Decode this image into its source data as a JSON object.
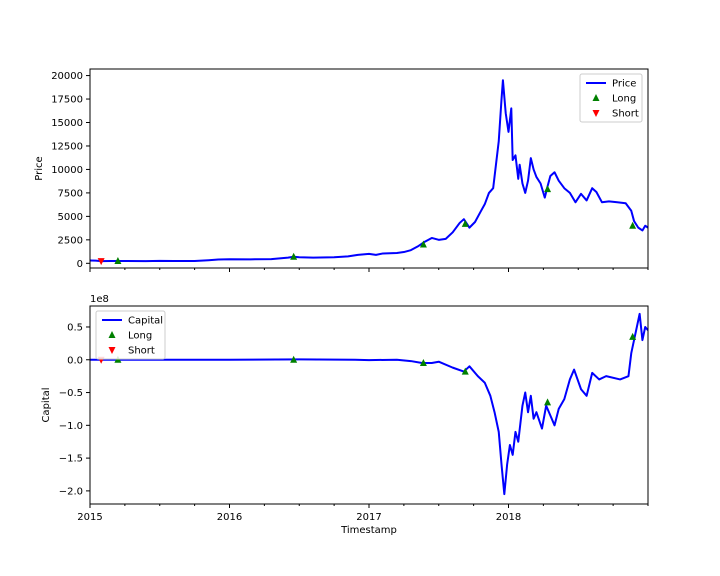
{
  "colors": {
    "price": "#0000ff",
    "capital": "#0000ff",
    "long": "#008000",
    "short": "#ff0000",
    "axis": "#000000",
    "legend_border": "#cccccc"
  },
  "shared_x": {
    "label": "Timestamp",
    "range": [
      2015.0,
      2019.0
    ],
    "ticks": [
      2015,
      2016,
      2017,
      2018
    ],
    "tick_labels": [
      "2015",
      "2016",
      "2017",
      "2018"
    ],
    "minor_ticks": [
      2015.25,
      2015.5,
      2015.75,
      2016.25,
      2016.5,
      2016.75,
      2017.25,
      2017.5,
      2017.75,
      2018.25,
      2018.5,
      2018.75,
      2019.0
    ]
  },
  "chart_data": [
    {
      "type": "line",
      "ylabel": "Price",
      "ylim": [
        -500,
        20700
      ],
      "yticks": [
        0,
        2500,
        5000,
        7500,
        10000,
        12500,
        15000,
        17500,
        20000
      ],
      "ytick_labels": [
        "0",
        "2500",
        "5000",
        "7500",
        "10000",
        "12500",
        "15000",
        "17500",
        "20000"
      ],
      "legend": {
        "placement": "top-right",
        "entries": [
          "Price",
          "Long",
          "Short"
        ]
      },
      "series": [
        {
          "name": "Price",
          "style": "line",
          "points": [
            [
              2015.0,
              300
            ],
            [
              2015.04,
              280
            ],
            [
              2015.08,
              230
            ],
            [
              2015.15,
              240
            ],
            [
              2015.25,
              250
            ],
            [
              2015.4,
              230
            ],
            [
              2015.5,
              260
            ],
            [
              2015.6,
              240
            ],
            [
              2015.75,
              250
            ],
            [
              2015.85,
              330
            ],
            [
              2015.92,
              400
            ],
            [
              2016.0,
              430
            ],
            [
              2016.15,
              420
            ],
            [
              2016.3,
              450
            ],
            [
              2016.42,
              600
            ],
            [
              2016.46,
              700
            ],
            [
              2016.5,
              650
            ],
            [
              2016.6,
              600
            ],
            [
              2016.75,
              640
            ],
            [
              2016.85,
              740
            ],
            [
              2016.92,
              900
            ],
            [
              2017.0,
              1000
            ],
            [
              2017.05,
              900
            ],
            [
              2017.1,
              1050
            ],
            [
              2017.2,
              1100
            ],
            [
              2017.25,
              1200
            ],
            [
              2017.3,
              1400
            ],
            [
              2017.35,
              1800
            ],
            [
              2017.4,
              2300
            ],
            [
              2017.45,
              2700
            ],
            [
              2017.5,
              2500
            ],
            [
              2017.55,
              2600
            ],
            [
              2017.6,
              3300
            ],
            [
              2017.65,
              4300
            ],
            [
              2017.68,
              4700
            ],
            [
              2017.72,
              3800
            ],
            [
              2017.76,
              4400
            ],
            [
              2017.8,
              5500
            ],
            [
              2017.83,
              6300
            ],
            [
              2017.86,
              7500
            ],
            [
              2017.89,
              8000
            ],
            [
              2017.91,
              10500
            ],
            [
              2017.93,
              13000
            ],
            [
              2017.95,
              17500
            ],
            [
              2017.96,
              19500
            ],
            [
              2017.98,
              16000
            ],
            [
              2018.0,
              14000
            ],
            [
              2018.02,
              16500
            ],
            [
              2018.03,
              11000
            ],
            [
              2018.05,
              11500
            ],
            [
              2018.07,
              9000
            ],
            [
              2018.08,
              10500
            ],
            [
              2018.1,
              8500
            ],
            [
              2018.12,
              7500
            ],
            [
              2018.14,
              8800
            ],
            [
              2018.16,
              11200
            ],
            [
              2018.18,
              10000
            ],
            [
              2018.2,
              9200
            ],
            [
              2018.23,
              8500
            ],
            [
              2018.26,
              7000
            ],
            [
              2018.28,
              8200
            ],
            [
              2018.3,
              9300
            ],
            [
              2018.33,
              9700
            ],
            [
              2018.36,
              8800
            ],
            [
              2018.4,
              8000
            ],
            [
              2018.44,
              7500
            ],
            [
              2018.48,
              6500
            ],
            [
              2018.52,
              7400
            ],
            [
              2018.56,
              6700
            ],
            [
              2018.6,
              8000
            ],
            [
              2018.63,
              7600
            ],
            [
              2018.67,
              6500
            ],
            [
              2018.72,
              6600
            ],
            [
              2018.78,
              6500
            ],
            [
              2018.84,
              6400
            ],
            [
              2018.88,
              5600
            ],
            [
              2018.9,
              4500
            ],
            [
              2018.93,
              3800
            ],
            [
              2018.96,
              3500
            ],
            [
              2018.98,
              4000
            ],
            [
              2019.0,
              3800
            ]
          ]
        },
        {
          "name": "Long",
          "style": "marker-up",
          "points": [
            [
              2015.2,
              250
            ],
            [
              2016.46,
              700
            ],
            [
              2017.39,
              2000
            ],
            [
              2017.69,
              4200
            ],
            [
              2018.28,
              7900
            ],
            [
              2018.89,
              4000
            ]
          ]
        },
        {
          "name": "Short",
          "style": "marker-down",
          "points": [
            [
              2015.08,
              230
            ]
          ]
        }
      ]
    },
    {
      "type": "line",
      "ylabel": "Capital",
      "offset_label": "1e8",
      "ylim": [
        -2.2,
        0.82
      ],
      "yticks": [
        -2.0,
        -1.5,
        -1.0,
        -0.5,
        0.0,
        0.5
      ],
      "ytick_labels": [
        "−2.0",
        "−1.5",
        "−1.0",
        "−0.5",
        "0.0",
        "0.5"
      ],
      "legend": {
        "placement": "top-left",
        "entries": [
          "Capital",
          "Long",
          "Short"
        ]
      },
      "series": [
        {
          "name": "Capital",
          "style": "line",
          "points": [
            [
              2015.0,
              0.0
            ],
            [
              2016.0,
              0.0
            ],
            [
              2016.5,
              0.005
            ],
            [
              2016.9,
              0.0
            ],
            [
              2017.0,
              -0.005
            ],
            [
              2017.2,
              0.0
            ],
            [
              2017.3,
              -0.02
            ],
            [
              2017.38,
              -0.05
            ],
            [
              2017.45,
              -0.05
            ],
            [
              2017.5,
              -0.03
            ],
            [
              2017.6,
              -0.12
            ],
            [
              2017.68,
              -0.18
            ],
            [
              2017.72,
              -0.1
            ],
            [
              2017.78,
              -0.25
            ],
            [
              2017.83,
              -0.35
            ],
            [
              2017.87,
              -0.55
            ],
            [
              2017.9,
              -0.8
            ],
            [
              2017.93,
              -1.1
            ],
            [
              2017.95,
              -1.6
            ],
            [
              2017.97,
              -2.05
            ],
            [
              2017.99,
              -1.6
            ],
            [
              2018.01,
              -1.3
            ],
            [
              2018.03,
              -1.45
            ],
            [
              2018.05,
              -1.1
            ],
            [
              2018.07,
              -1.25
            ],
            [
              2018.1,
              -0.7
            ],
            [
              2018.12,
              -0.5
            ],
            [
              2018.14,
              -0.8
            ],
            [
              2018.16,
              -0.55
            ],
            [
              2018.18,
              -0.9
            ],
            [
              2018.2,
              -0.8
            ],
            [
              2018.24,
              -1.05
            ],
            [
              2018.27,
              -0.7
            ],
            [
              2018.3,
              -0.85
            ],
            [
              2018.33,
              -1.0
            ],
            [
              2018.36,
              -0.75
            ],
            [
              2018.4,
              -0.6
            ],
            [
              2018.44,
              -0.3
            ],
            [
              2018.47,
              -0.15
            ],
            [
              2018.52,
              -0.45
            ],
            [
              2018.56,
              -0.55
            ],
            [
              2018.6,
              -0.2
            ],
            [
              2018.65,
              -0.3
            ],
            [
              2018.7,
              -0.25
            ],
            [
              2018.8,
              -0.3
            ],
            [
              2018.86,
              -0.25
            ],
            [
              2018.88,
              0.1
            ],
            [
              2018.9,
              0.3
            ],
            [
              2018.92,
              0.5
            ],
            [
              2018.94,
              0.7
            ],
            [
              2018.96,
              0.3
            ],
            [
              2018.98,
              0.5
            ],
            [
              2019.0,
              0.45
            ]
          ]
        },
        {
          "name": "Long",
          "style": "marker-up",
          "points": [
            [
              2015.2,
              0.0
            ],
            [
              2016.46,
              0.0
            ],
            [
              2017.39,
              -0.05
            ],
            [
              2017.69,
              -0.18
            ],
            [
              2018.28,
              -0.65
            ],
            [
              2018.89,
              0.35
            ]
          ]
        },
        {
          "name": "Short",
          "style": "marker-down",
          "points": [
            [
              2015.08,
              0.0
            ]
          ]
        }
      ]
    }
  ]
}
